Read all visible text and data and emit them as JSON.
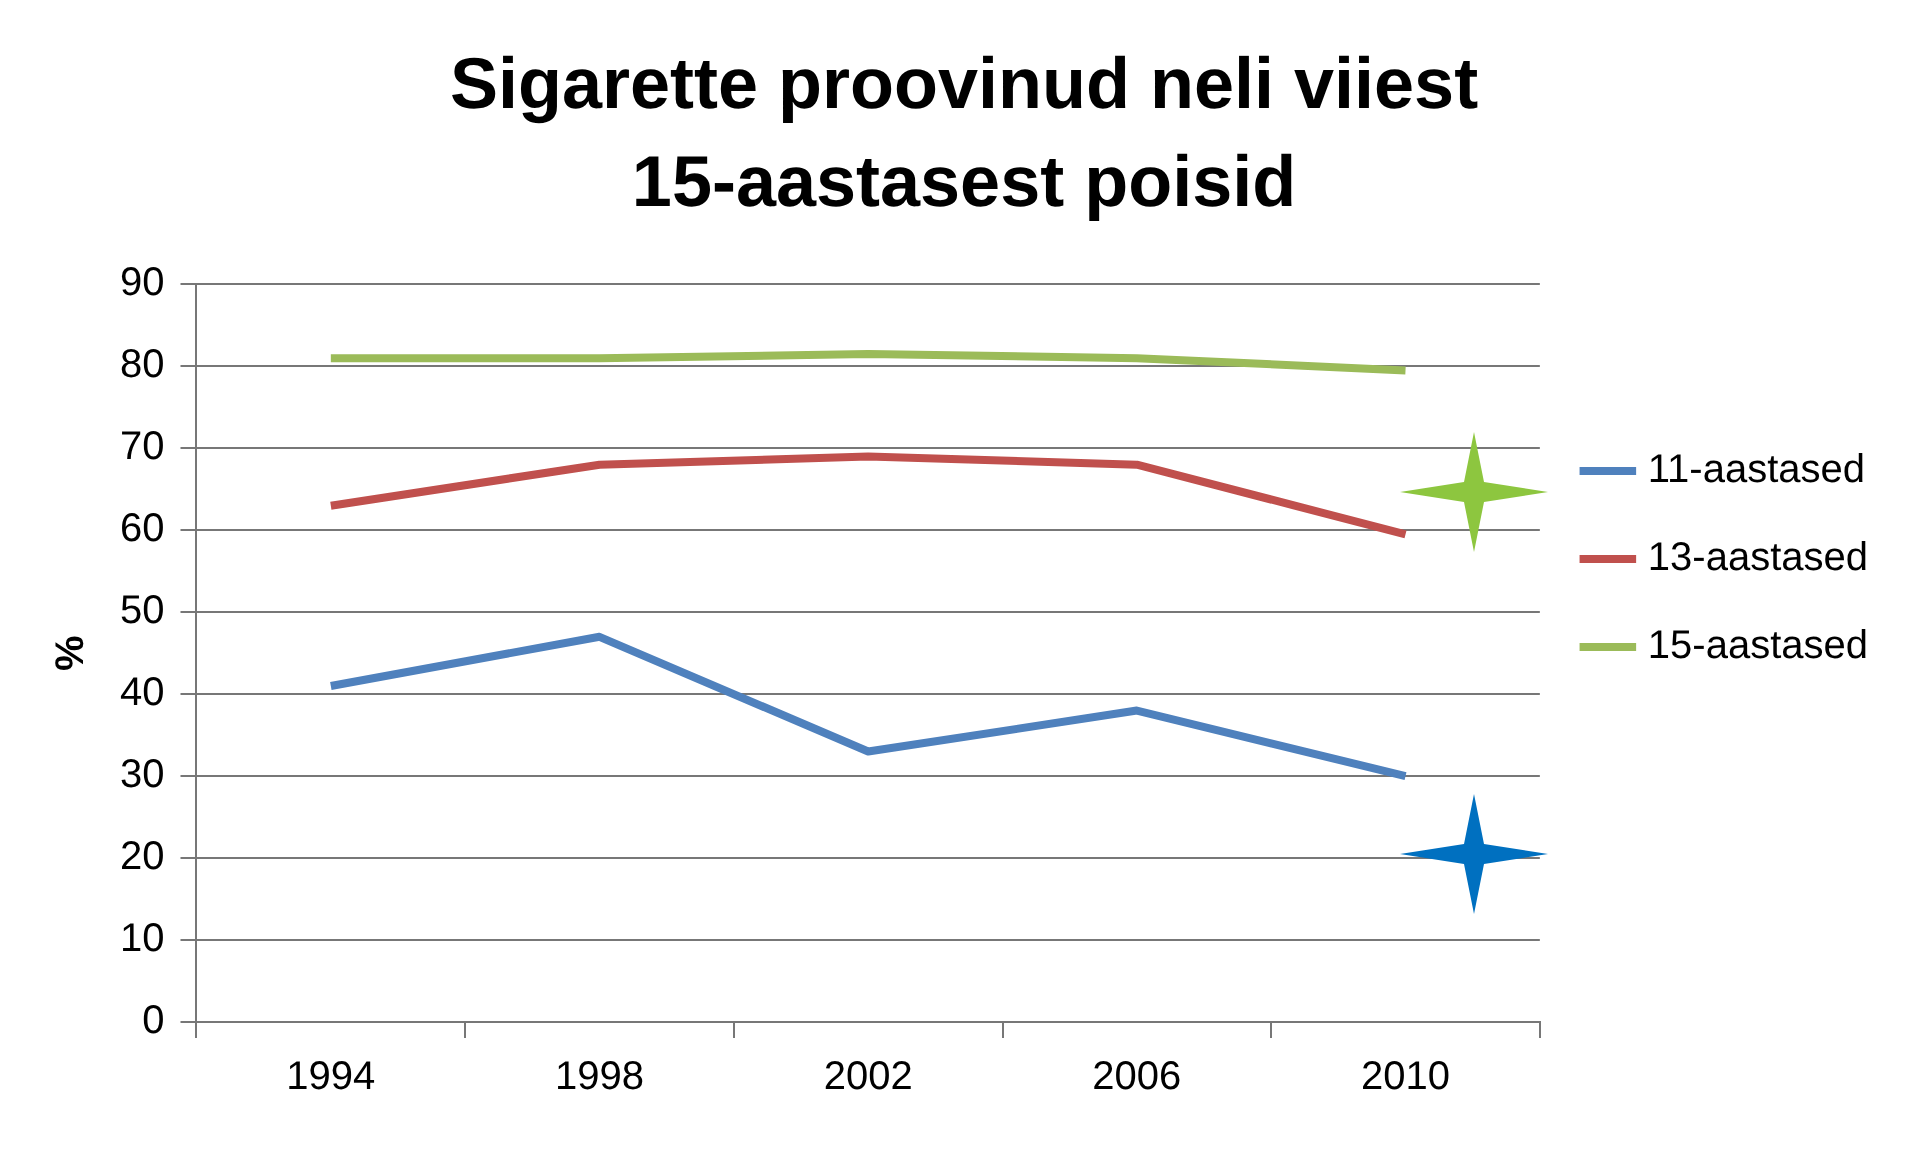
{
  "chart_data": {
    "type": "line",
    "title": "Sigarette proovinud neli viiest 15-aastasest poisid",
    "ylabel": "%",
    "categories": [
      "1994",
      "1998",
      "2002",
      "2006",
      "2010"
    ],
    "series": [
      {
        "name": "11-aastased",
        "color": "#4f81bd",
        "values": [
          41,
          47,
          33,
          38,
          30
        ]
      },
      {
        "name": "13-aastased",
        "color": "#c0504d",
        "values": [
          63,
          68,
          69,
          68,
          59.5
        ]
      },
      {
        "name": "15-aastased",
        "color": "#9bbb59",
        "values": [
          81,
          81,
          81.5,
          81,
          79.5
        ]
      }
    ],
    "ylim": [
      0,
      90
    ],
    "yticks": [
      0,
      10,
      20,
      30,
      40,
      50,
      60,
      70,
      80,
      90
    ],
    "grid": "y",
    "legend": "right",
    "marker": "none",
    "line_style": "solid"
  }
}
